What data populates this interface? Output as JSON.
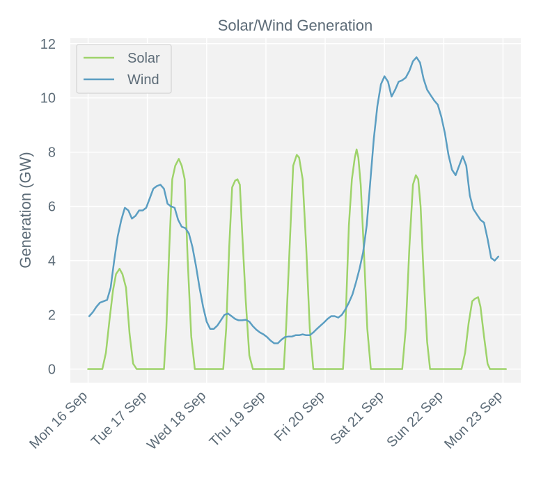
{
  "chart_data": {
    "type": "line",
    "title": "Solar/Wind Generation",
    "xlabel": "",
    "ylabel": "Generation (GW)",
    "ylim": [
      -0.5,
      12.2
    ],
    "xlim": [
      -0.3,
      7.3
    ],
    "yticks": [
      0,
      2,
      4,
      6,
      8,
      10,
      12
    ],
    "xticks": [
      {
        "pos": 0,
        "label": "Mon 16 Sep"
      },
      {
        "pos": 1,
        "label": "Tue 17 Sep"
      },
      {
        "pos": 2,
        "label": "Wed 18 Sep"
      },
      {
        "pos": 3,
        "label": "Thu 19 Sep"
      },
      {
        "pos": 4,
        "label": "Fri 20 Sep"
      },
      {
        "pos": 5,
        "label": "Sat 21 Sep"
      },
      {
        "pos": 6,
        "label": "Sun 22 Sep"
      },
      {
        "pos": 7,
        "label": "Mon 23 Sep"
      }
    ],
    "grid": true,
    "legend_position": "top-left",
    "colors": {
      "background": "#f2f2f2",
      "grid": "#ffffff",
      "text": "#5c6b77"
    },
    "series": [
      {
        "name": "Solar",
        "color": "#9ed36a",
        "points": [
          [
            0,
            0
          ],
          [
            0.24,
            0
          ],
          [
            0.3,
            0.6
          ],
          [
            0.36,
            1.8
          ],
          [
            0.42,
            2.9
          ],
          [
            0.47,
            3.5
          ],
          [
            0.53,
            3.7
          ],
          [
            0.58,
            3.5
          ],
          [
            0.64,
            3.0
          ],
          [
            0.7,
            1.3
          ],
          [
            0.76,
            0.2
          ],
          [
            0.82,
            0
          ],
          [
            1.0,
            0
          ],
          [
            1.28,
            0
          ],
          [
            1.32,
            1.5
          ],
          [
            1.37,
            4.5
          ],
          [
            1.42,
            7.0
          ],
          [
            1.47,
            7.5
          ],
          [
            1.53,
            7.75
          ],
          [
            1.58,
            7.5
          ],
          [
            1.63,
            7.0
          ],
          [
            1.68,
            4.0
          ],
          [
            1.74,
            1.2
          ],
          [
            1.8,
            0
          ],
          [
            2.0,
            0
          ],
          [
            2.28,
            0
          ],
          [
            2.33,
            1.5
          ],
          [
            2.38,
            4.5
          ],
          [
            2.43,
            6.7
          ],
          [
            2.48,
            6.95
          ],
          [
            2.52,
            7.0
          ],
          [
            2.56,
            6.8
          ],
          [
            2.6,
            5.0
          ],
          [
            2.66,
            2.5
          ],
          [
            2.72,
            0.5
          ],
          [
            2.78,
            0
          ],
          [
            3.0,
            0
          ],
          [
            3.3,
            0
          ],
          [
            3.34,
            1.5
          ],
          [
            3.4,
            4.5
          ],
          [
            3.46,
            7.5
          ],
          [
            3.52,
            7.9
          ],
          [
            3.56,
            7.8
          ],
          [
            3.62,
            7.0
          ],
          [
            3.68,
            4.5
          ],
          [
            3.74,
            1.5
          ],
          [
            3.8,
            0
          ],
          [
            4.0,
            0
          ],
          [
            4.3,
            0
          ],
          [
            4.34,
            1.5
          ],
          [
            4.4,
            5.3
          ],
          [
            4.45,
            7.0
          ],
          [
            4.5,
            7.8
          ],
          [
            4.53,
            8.1
          ],
          [
            4.56,
            7.8
          ],
          [
            4.6,
            6.8
          ],
          [
            4.65,
            4.5
          ],
          [
            4.71,
            1.5
          ],
          [
            4.77,
            0
          ],
          [
            5.0,
            0
          ],
          [
            5.3,
            0
          ],
          [
            5.36,
            1.5
          ],
          [
            5.42,
            4.5
          ],
          [
            5.48,
            6.8
          ],
          [
            5.53,
            7.15
          ],
          [
            5.57,
            7.0
          ],
          [
            5.61,
            6.0
          ],
          [
            5.66,
            3.5
          ],
          [
            5.72,
            1.0
          ],
          [
            5.77,
            0
          ],
          [
            6.0,
            0
          ],
          [
            6.3,
            0
          ],
          [
            6.36,
            0.6
          ],
          [
            6.42,
            1.7
          ],
          [
            6.48,
            2.5
          ],
          [
            6.53,
            2.6
          ],
          [
            6.58,
            2.65
          ],
          [
            6.62,
            2.3
          ],
          [
            6.68,
            1.2
          ],
          [
            6.74,
            0.2
          ],
          [
            6.78,
            0
          ],
          [
            7.0,
            0
          ],
          [
            7.05,
            0
          ]
        ]
      },
      {
        "name": "Wind",
        "color": "#5b9ec2",
        "points": [
          [
            0.02,
            1.95
          ],
          [
            0.08,
            2.1
          ],
          [
            0.14,
            2.3
          ],
          [
            0.2,
            2.45
          ],
          [
            0.26,
            2.5
          ],
          [
            0.32,
            2.55
          ],
          [
            0.38,
            3.0
          ],
          [
            0.44,
            4.0
          ],
          [
            0.5,
            4.9
          ],
          [
            0.56,
            5.5
          ],
          [
            0.62,
            5.95
          ],
          [
            0.68,
            5.85
          ],
          [
            0.74,
            5.55
          ],
          [
            0.8,
            5.65
          ],
          [
            0.86,
            5.85
          ],
          [
            0.92,
            5.85
          ],
          [
            0.98,
            5.95
          ],
          [
            1.04,
            6.3
          ],
          [
            1.1,
            6.65
          ],
          [
            1.16,
            6.75
          ],
          [
            1.22,
            6.8
          ],
          [
            1.28,
            6.65
          ],
          [
            1.34,
            6.1
          ],
          [
            1.4,
            6.0
          ],
          [
            1.46,
            5.95
          ],
          [
            1.52,
            5.5
          ],
          [
            1.58,
            5.25
          ],
          [
            1.64,
            5.2
          ],
          [
            1.7,
            5.0
          ],
          [
            1.76,
            4.5
          ],
          [
            1.82,
            3.8
          ],
          [
            1.88,
            3.0
          ],
          [
            1.94,
            2.3
          ],
          [
            2.0,
            1.75
          ],
          [
            2.06,
            1.48
          ],
          [
            2.12,
            1.48
          ],
          [
            2.18,
            1.6
          ],
          [
            2.24,
            1.8
          ],
          [
            2.3,
            2.0
          ],
          [
            2.36,
            2.05
          ],
          [
            2.42,
            1.95
          ],
          [
            2.48,
            1.85
          ],
          [
            2.54,
            1.8
          ],
          [
            2.6,
            1.8
          ],
          [
            2.66,
            1.82
          ],
          [
            2.72,
            1.75
          ],
          [
            2.78,
            1.58
          ],
          [
            2.84,
            1.45
          ],
          [
            2.9,
            1.35
          ],
          [
            2.96,
            1.28
          ],
          [
            3.02,
            1.18
          ],
          [
            3.08,
            1.05
          ],
          [
            3.14,
            0.95
          ],
          [
            3.2,
            0.95
          ],
          [
            3.26,
            1.08
          ],
          [
            3.32,
            1.18
          ],
          [
            3.38,
            1.2
          ],
          [
            3.44,
            1.2
          ],
          [
            3.5,
            1.25
          ],
          [
            3.56,
            1.25
          ],
          [
            3.62,
            1.28
          ],
          [
            3.68,
            1.25
          ],
          [
            3.74,
            1.25
          ],
          [
            3.8,
            1.35
          ],
          [
            3.86,
            1.48
          ],
          [
            3.92,
            1.6
          ],
          [
            3.98,
            1.72
          ],
          [
            4.04,
            1.85
          ],
          [
            4.1,
            1.95
          ],
          [
            4.16,
            1.95
          ],
          [
            4.22,
            1.9
          ],
          [
            4.28,
            2.0
          ],
          [
            4.34,
            2.2
          ],
          [
            4.4,
            2.45
          ],
          [
            4.46,
            2.75
          ],
          [
            4.52,
            3.2
          ],
          [
            4.58,
            3.7
          ],
          [
            4.64,
            4.3
          ],
          [
            4.7,
            5.3
          ],
          [
            4.76,
            6.9
          ],
          [
            4.82,
            8.5
          ],
          [
            4.88,
            9.7
          ],
          [
            4.94,
            10.5
          ],
          [
            5.0,
            10.8
          ],
          [
            5.06,
            10.6
          ],
          [
            5.12,
            10.05
          ],
          [
            5.18,
            10.3
          ],
          [
            5.24,
            10.6
          ],
          [
            5.3,
            10.65
          ],
          [
            5.36,
            10.75
          ],
          [
            5.42,
            11.0
          ],
          [
            5.48,
            11.35
          ],
          [
            5.54,
            11.5
          ],
          [
            5.6,
            11.3
          ],
          [
            5.66,
            10.7
          ],
          [
            5.72,
            10.3
          ],
          [
            5.78,
            10.1
          ],
          [
            5.84,
            9.9
          ],
          [
            5.9,
            9.75
          ],
          [
            5.96,
            9.3
          ],
          [
            6.02,
            8.7
          ],
          [
            6.08,
            7.9
          ],
          [
            6.14,
            7.35
          ],
          [
            6.2,
            7.15
          ],
          [
            6.26,
            7.5
          ],
          [
            6.32,
            7.85
          ],
          [
            6.38,
            7.5
          ],
          [
            6.44,
            6.4
          ],
          [
            6.5,
            5.9
          ],
          [
            6.56,
            5.7
          ],
          [
            6.62,
            5.5
          ],
          [
            6.68,
            5.4
          ],
          [
            6.74,
            4.8
          ],
          [
            6.8,
            4.1
          ],
          [
            6.86,
            4.0
          ],
          [
            6.92,
            4.15
          ]
        ]
      }
    ]
  }
}
